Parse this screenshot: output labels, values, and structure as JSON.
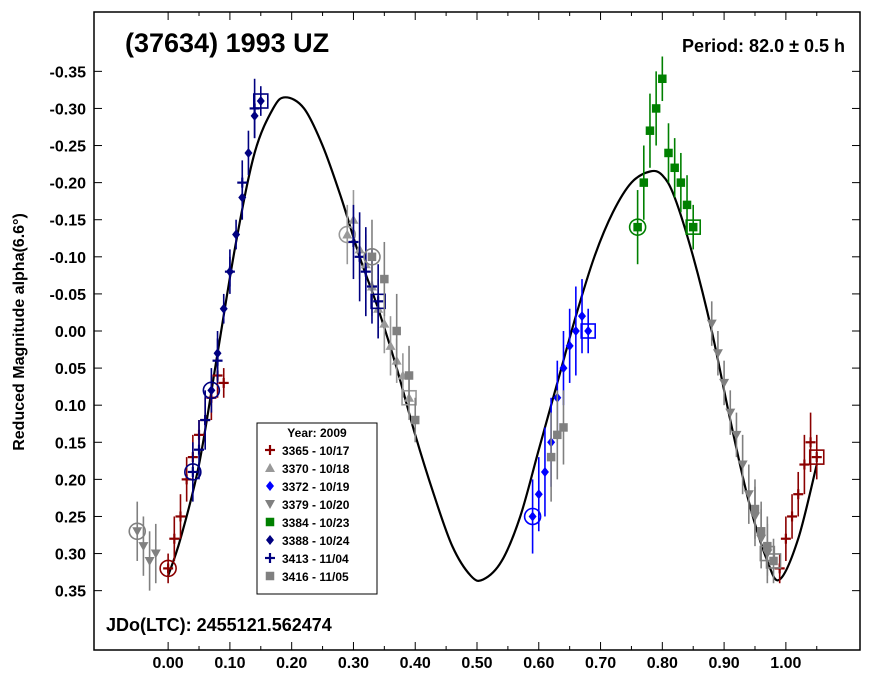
{
  "chart_data": {
    "type": "scatter",
    "title": "(37634) 1993 UZ",
    "period_label": "Period: 82.0 ± 0.5 h",
    "epoch_label": "JDo(LTC): 2455121.562474",
    "ylabel": "Reduced Magnitude alpha(6.6°)",
    "xlabel": "",
    "xlim": [
      -0.12,
      1.12
    ],
    "ylim": [
      0.43,
      -0.43
    ],
    "y_inverted": true,
    "x_ticks": [
      0.0,
      0.1,
      0.2,
      0.3,
      0.4,
      0.5,
      0.6,
      0.7,
      0.8,
      0.9,
      1.0
    ],
    "x_tick_labels": [
      "0.00",
      "0.10",
      "0.20",
      "0.30",
      "0.40",
      "0.50",
      "0.60",
      "0.70",
      "0.80",
      "0.90",
      "1.00"
    ],
    "y_ticks": [
      -0.35,
      -0.3,
      -0.25,
      -0.2,
      -0.15,
      -0.1,
      -0.05,
      0.0,
      0.05,
      0.1,
      0.15,
      0.2,
      0.25,
      0.3,
      0.35
    ],
    "y_tick_labels": [
      "-0.35",
      "-0.30",
      "-0.25",
      "-0.20",
      "-0.15",
      "-0.10",
      "-0.05",
      "0.00",
      "0.05",
      "0.10",
      "0.15",
      "0.20",
      "0.25",
      "0.30",
      "0.35"
    ],
    "grid": false,
    "legend": {
      "placement": "bottom-left-center",
      "title": "Year: 2009",
      "entries": [
        {
          "label": "3365 - 10/17",
          "marker": "cross",
          "color": "#8B0000"
        },
        {
          "label": "3370 - 10/18",
          "marker": "triangle-up",
          "color": "#999999"
        },
        {
          "label": "3372 - 10/19",
          "marker": "diamond",
          "color": "#0000FF"
        },
        {
          "label": "3379 - 10/20",
          "marker": "triangle-down",
          "color": "#808080"
        },
        {
          "label": "3384 - 10/23",
          "marker": "square",
          "color": "#008000"
        },
        {
          "label": "3388 - 10/24",
          "marker": "diamond",
          "color": "#000080"
        },
        {
          "label": "3413 - 11/04",
          "marker": "cross",
          "color": "#000080"
        },
        {
          "label": "3416 - 11/05",
          "marker": "square",
          "color": "#808080"
        }
      ]
    },
    "fit_curve": {
      "color": "#000000",
      "x": [
        0.0,
        0.02,
        0.05,
        0.08,
        0.11,
        0.14,
        0.17,
        0.19,
        0.22,
        0.25,
        0.28,
        0.31,
        0.34,
        0.37,
        0.4,
        0.43,
        0.46,
        0.49,
        0.51,
        0.54,
        0.57,
        0.6,
        0.63,
        0.66,
        0.69,
        0.72,
        0.75,
        0.78,
        0.8,
        0.82,
        0.85,
        0.88,
        0.91,
        0.94,
        0.97,
        0.99,
        1.02,
        1.05
      ],
      "y": [
        0.33,
        0.28,
        0.18,
        0.03,
        -0.12,
        -0.24,
        -0.3,
        -0.315,
        -0.3,
        -0.25,
        -0.18,
        -0.1,
        -0.03,
        0.05,
        0.14,
        0.22,
        0.29,
        0.33,
        0.335,
        0.31,
        0.25,
        0.16,
        0.07,
        -0.02,
        -0.1,
        -0.16,
        -0.2,
        -0.215,
        -0.21,
        -0.18,
        -0.1,
        0.0,
        0.12,
        0.23,
        0.31,
        0.335,
        0.28,
        0.18
      ]
    },
    "series": [
      {
        "name": "3365 - 10/17",
        "marker": "cross",
        "color": "#8B0000",
        "x": [
          0.0,
          0.01,
          0.02,
          0.03,
          0.04,
          0.05,
          0.06,
          0.07,
          0.08,
          0.09,
          0.99,
          1.0,
          1.01,
          1.02,
          1.03,
          1.04,
          1.05
        ],
        "y": [
          0.32,
          0.28,
          0.25,
          0.2,
          0.17,
          0.14,
          0.12,
          0.09,
          0.06,
          0.07,
          0.32,
          0.28,
          0.25,
          0.22,
          0.18,
          0.15,
          0.17
        ],
        "err": [
          0.02,
          0.03,
          0.03,
          0.03,
          0.03,
          0.02,
          0.03,
          0.03,
          0.03,
          0.02,
          0.02,
          0.03,
          0.03,
          0.03,
          0.04,
          0.04,
          0.03
        ]
      },
      {
        "name": "3370 - 10/18",
        "marker": "triangle-up",
        "color": "#999999",
        "x": [
          0.29,
          0.3,
          0.31,
          0.32,
          0.33,
          0.34,
          0.35,
          0.36,
          0.37,
          0.38,
          0.39
        ],
        "y": [
          -0.13,
          -0.15,
          -0.11,
          -0.09,
          -0.06,
          -0.03,
          -0.01,
          0.02,
          0.04,
          0.06,
          0.09
        ],
        "err": [
          0.04,
          0.04,
          0.04,
          0.04,
          0.04,
          0.04,
          0.04,
          0.04,
          0.03,
          0.03,
          0.03
        ]
      },
      {
        "name": "3372 - 10/19",
        "marker": "diamond",
        "color": "#0000FF",
        "x": [
          0.59,
          0.6,
          0.61,
          0.62,
          0.63,
          0.64,
          0.65,
          0.66,
          0.67,
          0.68
        ],
        "y": [
          0.25,
          0.22,
          0.19,
          0.15,
          0.09,
          0.05,
          0.02,
          0.0,
          -0.02,
          0.0
        ],
        "err": [
          0.05,
          0.05,
          0.06,
          0.06,
          0.05,
          0.05,
          0.05,
          0.06,
          0.05,
          0.03
        ]
      },
      {
        "name": "3379 - 10/20",
        "marker": "triangle-down",
        "color": "#808080",
        "x": [
          -0.05,
          -0.04,
          -0.03,
          -0.02,
          0.88,
          0.89,
          0.9,
          0.91,
          0.92,
          0.93,
          0.94,
          0.95,
          0.96,
          0.97
        ],
        "y": [
          0.27,
          0.29,
          0.31,
          0.3,
          -0.01,
          0.03,
          0.07,
          0.11,
          0.14,
          0.18,
          0.22,
          0.25,
          0.28,
          0.3
        ],
        "err": [
          0.04,
          0.04,
          0.04,
          0.04,
          0.03,
          0.03,
          0.03,
          0.03,
          0.03,
          0.04,
          0.04,
          0.04,
          0.04,
          0.04
        ]
      },
      {
        "name": "3384 - 10/23",
        "marker": "square",
        "color": "#008000",
        "x": [
          0.76,
          0.77,
          0.78,
          0.79,
          0.8,
          0.81,
          0.82,
          0.83,
          0.84,
          0.85
        ],
        "y": [
          -0.14,
          -0.2,
          -0.27,
          -0.3,
          -0.34,
          -0.24,
          -0.22,
          -0.2,
          -0.17,
          -0.14
        ],
        "err": [
          0.05,
          0.05,
          0.05,
          0.05,
          0.03,
          0.04,
          0.04,
          0.04,
          0.04,
          0.03
        ]
      },
      {
        "name": "3388 - 10/24",
        "marker": "diamond",
        "color": "#000080",
        "x": [
          0.07,
          0.08,
          0.09,
          0.1,
          0.11,
          0.12,
          0.13,
          0.14,
          0.15
        ],
        "y": [
          0.08,
          0.03,
          -0.03,
          -0.08,
          -0.13,
          -0.18,
          -0.24,
          -0.29,
          -0.31
        ],
        "err": [
          0.03,
          0.03,
          0.02,
          0.02,
          0.02,
          0.03,
          0.03,
          0.03,
          0.02
        ]
      },
      {
        "name": "3413 - 11/04",
        "marker": "cross",
        "color": "#000080",
        "x": [
          0.04,
          0.05,
          0.06,
          0.08,
          0.1,
          0.12,
          0.14,
          0.3,
          0.31,
          0.32,
          0.33,
          0.34
        ],
        "y": [
          0.19,
          0.16,
          0.12,
          0.04,
          -0.08,
          -0.2,
          -0.3,
          -0.12,
          -0.1,
          -0.08,
          -0.06,
          -0.04
        ],
        "err": [
          0.04,
          0.04,
          0.04,
          0.03,
          0.03,
          0.03,
          0.04,
          0.05,
          0.06,
          0.06,
          0.05,
          0.05
        ]
      },
      {
        "name": "3416 - 11/05",
        "marker": "square",
        "color": "#808080",
        "x": [
          0.33,
          0.35,
          0.37,
          0.39,
          0.4,
          0.62,
          0.63,
          0.64,
          0.95,
          0.96,
          0.97,
          0.98
        ],
        "y": [
          -0.1,
          -0.07,
          0.0,
          0.06,
          0.12,
          0.17,
          0.14,
          0.13,
          0.24,
          0.27,
          0.29,
          0.31
        ],
        "err": [
          0.05,
          0.05,
          0.05,
          0.04,
          0.03,
          0.06,
          0.06,
          0.05,
          0.04,
          0.04,
          0.04,
          0.03
        ]
      }
    ]
  }
}
